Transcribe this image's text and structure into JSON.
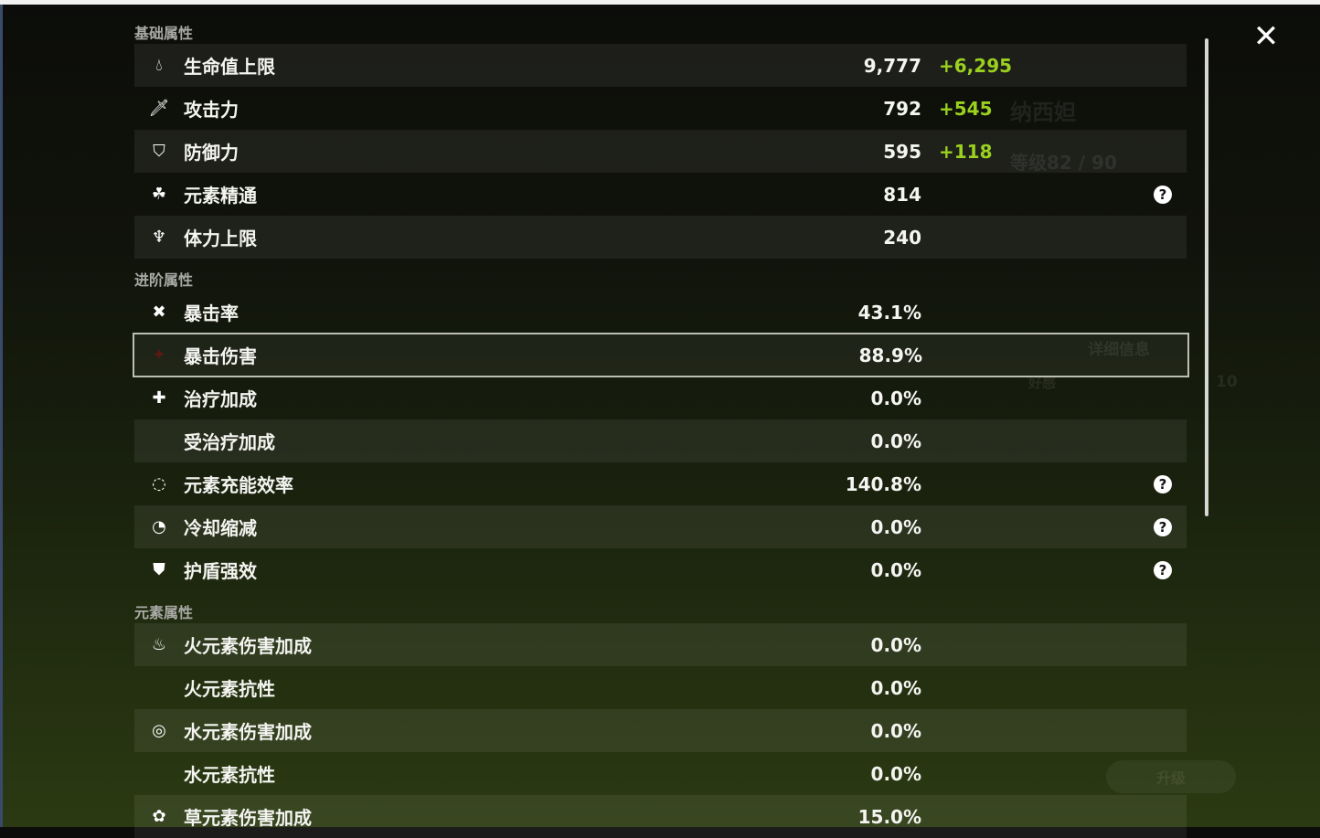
{
  "sections": {
    "basic": "基础属性",
    "advanced": "进阶属性",
    "elemental": "元素属性"
  },
  "basic": [
    {
      "icon": "hp-drop-icon",
      "label": "生命值上限",
      "value": "9,777",
      "bonus": "+6,295"
    },
    {
      "icon": "sword-icon",
      "label": "攻击力",
      "value": "792",
      "bonus": "+545"
    },
    {
      "icon": "shield-icon",
      "label": "防御力",
      "value": "595",
      "bonus": "+118"
    },
    {
      "icon": "elemental-mastery-icon",
      "label": "元素精通",
      "value": "814",
      "help": true
    },
    {
      "icon": "stamina-icon",
      "label": "体力上限",
      "value": "240"
    }
  ],
  "advanced": [
    {
      "icon": "crit-rate-icon",
      "label": "暴击率",
      "value": "43.1%"
    },
    {
      "icon": "crit-dmg-icon",
      "label": "暴击伤害",
      "value": "88.9%",
      "selected": true
    },
    {
      "icon": "healing-cross-icon",
      "label": "治疗加成",
      "value": "0.0%"
    },
    {
      "icon": "",
      "label": "受治疗加成",
      "value": "0.0%"
    },
    {
      "icon": "energy-recharge-icon",
      "label": "元素充能效率",
      "value": "140.8%",
      "help": true
    },
    {
      "icon": "cooldown-icon",
      "label": "冷却缩减",
      "value": "0.0%",
      "help": true
    },
    {
      "icon": "shield-strength-icon",
      "label": "护盾强效",
      "value": "0.0%",
      "help": true
    }
  ],
  "elemental": [
    {
      "icon": "pyro-icon",
      "label": "火元素伤害加成",
      "value": "0.0%"
    },
    {
      "icon": "",
      "label": "火元素抗性",
      "value": "0.0%"
    },
    {
      "icon": "hydro-icon",
      "label": "水元素伤害加成",
      "value": "0.0%"
    },
    {
      "icon": "",
      "label": "水元素抗性",
      "value": "0.0%"
    },
    {
      "icon": "dendro-icon",
      "label": "草元素伤害加成",
      "value": "15.0%"
    }
  ],
  "background": {
    "character_name": "纳西妲",
    "level": "等级82 / 90",
    "details": "详细信息",
    "upgrade": "升级",
    "favor": "好感",
    "favor_value": "10"
  },
  "colors": {
    "bonus": "#9ad11f",
    "selected_border": "#bcbfb4"
  }
}
